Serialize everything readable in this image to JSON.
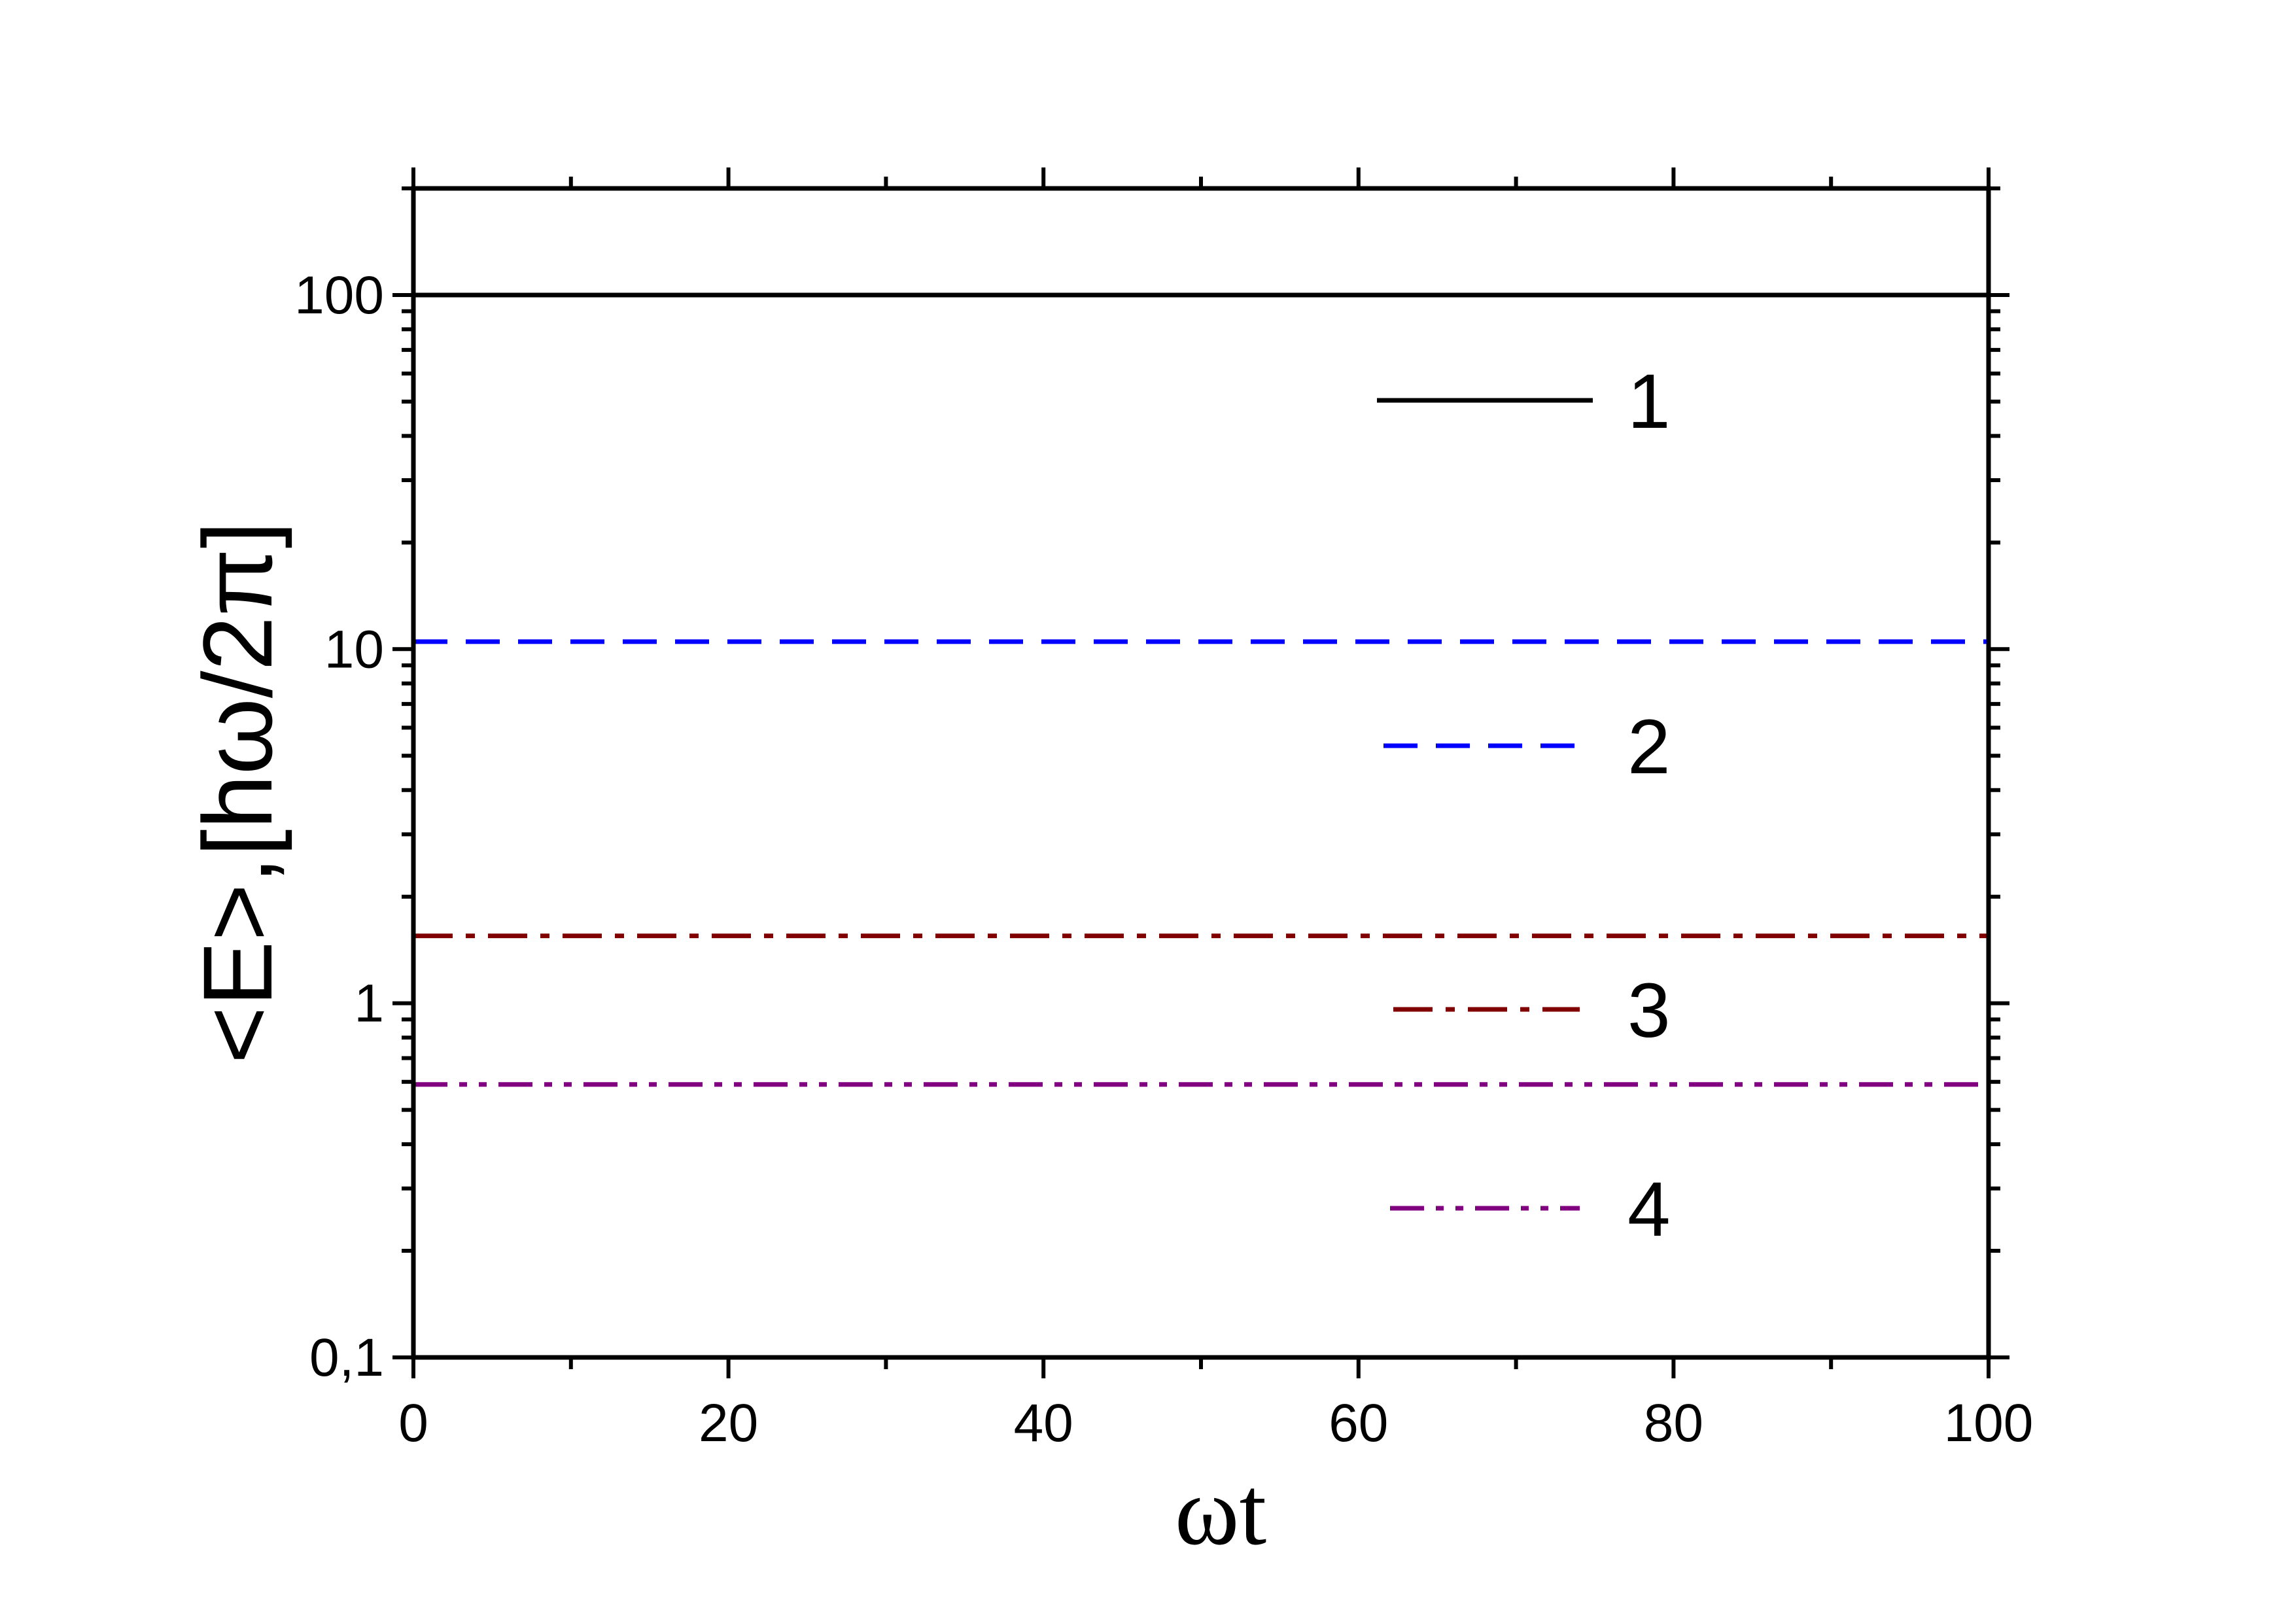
{
  "chart_data": {
    "type": "line",
    "title": "",
    "xlabel": "ωt",
    "ylabel": "<E>,[hω/2π]",
    "xlim": [
      0,
      100
    ],
    "ylim": [
      0.1,
      200
    ],
    "yscale": "log",
    "grid": false,
    "legend_position": "right-inside",
    "x_ticks": [
      0,
      20,
      40,
      60,
      80,
      100
    ],
    "x_tick_labels": [
      "0",
      "20",
      "40",
      "60",
      "80",
      "100"
    ],
    "y_ticks": [
      0.1,
      1,
      10,
      100
    ],
    "y_tick_labels": [
      "0,1",
      "1",
      "10",
      "100"
    ],
    "series": [
      {
        "name": "1",
        "color": "#000000",
        "style": "solid",
        "x": [
          0,
          100
        ],
        "y": [
          100,
          100
        ]
      },
      {
        "name": "2",
        "color": "#0000ff",
        "style": "dash",
        "x": [
          0,
          100
        ],
        "y": [
          10.5,
          10.5
        ]
      },
      {
        "name": "3",
        "color": "#800000",
        "style": "dash-dot",
        "x": [
          0,
          100
        ],
        "y": [
          1.55,
          1.55
        ]
      },
      {
        "name": "4",
        "color": "#800080",
        "style": "dash-dot-dot",
        "x": [
          0,
          100
        ],
        "y": [
          0.59,
          0.59
        ]
      }
    ]
  }
}
